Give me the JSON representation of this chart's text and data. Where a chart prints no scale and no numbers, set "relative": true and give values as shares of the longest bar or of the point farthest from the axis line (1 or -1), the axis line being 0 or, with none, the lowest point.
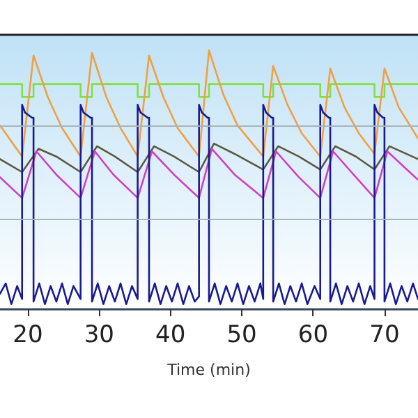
{
  "chart_data": {
    "type": "line",
    "xlabel": "Time (min)",
    "relative": true,
    "xlim": [
      16.1,
      74.7
    ],
    "xticks": [
      20,
      30,
      40,
      50,
      60,
      70
    ],
    "ref_lines": [
      {
        "axis": "y",
        "value": 0.35,
        "color": "#a8b4bc"
      },
      {
        "axis": "y",
        "value": 0.71,
        "color": "#a8b4bc"
      }
    ],
    "marker": "none",
    "line_style": "solid",
    "tick_labels": "x",
    "series": [
      {
        "color": "#80e040",
        "x": [
          16.1,
          19.2,
          19.2,
          20.8,
          20.8,
          27.4,
          27.4,
          29.0,
          29.0,
          35.4,
          35.4,
          37.0,
          37.0,
          44.0,
          44.0,
          45.4,
          45.4,
          53.0,
          53.0,
          54.4,
          54.4,
          61.0,
          61.0,
          62.4,
          62.4,
          68.6,
          68.6,
          70.0,
          70.0,
          74.7
        ],
        "values": [
          0.87,
          0.87,
          0.82,
          0.82,
          0.87,
          0.87,
          0.82,
          0.82,
          0.87,
          0.87,
          0.82,
          0.82,
          0.87,
          0.87,
          0.82,
          0.82,
          0.87,
          0.87,
          0.82,
          0.82,
          0.87,
          0.87,
          0.82,
          0.82,
          0.87,
          0.87,
          0.82,
          0.82,
          0.87,
          0.87
        ]
      },
      {
        "color": "#f0a040",
        "x": [
          16.1,
          19.2,
          20.8,
          22.8,
          24.8,
          27.4,
          29.0,
          31,
          33,
          35.4,
          37.0,
          39,
          41,
          44.0,
          45.4,
          47.4,
          49.4,
          53.0,
          54.4,
          56.4,
          58.4,
          61.0,
          62.4,
          64.4,
          66.4,
          68.6,
          70.0,
          72,
          74.7
        ],
        "values": [
          0.71,
          0.59,
          0.98,
          0.82,
          0.7,
          0.59,
          0.99,
          0.82,
          0.7,
          0.59,
          0.98,
          0.82,
          0.7,
          0.59,
          1.0,
          0.83,
          0.71,
          0.59,
          0.94,
          0.79,
          0.68,
          0.59,
          0.93,
          0.78,
          0.68,
          0.6,
          0.93,
          0.78,
          0.66
        ]
      },
      {
        "color": "#5a5a40",
        "x": [
          16.1,
          19.2,
          21.5,
          24,
          27.4,
          29.7,
          32.2,
          35.4,
          37.7,
          40.5,
          44.0,
          46.1,
          49,
          53.0,
          55.1,
          58,
          61.0,
          63.1,
          66,
          68.6,
          70.7,
          74.7
        ],
        "values": [
          0.58,
          0.53,
          0.62,
          0.59,
          0.53,
          0.63,
          0.59,
          0.53,
          0.63,
          0.59,
          0.53,
          0.64,
          0.6,
          0.54,
          0.63,
          0.59,
          0.54,
          0.63,
          0.59,
          0.54,
          0.63,
          0.58
        ]
      },
      {
        "color": "#d040c0",
        "x": [
          16.1,
          19.2,
          21.2,
          24,
          27.4,
          29.4,
          32,
          35.4,
          37.4,
          40.5,
          44.0,
          45.8,
          49,
          53.0,
          54.8,
          58,
          61.0,
          62.8,
          66,
          68.6,
          70.4,
          74.7
        ],
        "values": [
          0.51,
          0.43,
          0.61,
          0.52,
          0.43,
          0.61,
          0.52,
          0.43,
          0.61,
          0.52,
          0.43,
          0.62,
          0.52,
          0.43,
          0.61,
          0.51,
          0.43,
          0.61,
          0.51,
          0.43,
          0.61,
          0.5
        ]
      },
      {
        "color": "#1a1a90",
        "x": [
          16.1,
          16.9,
          17.7,
          18.5,
          19.2,
          19.2,
          19.6,
          20.6,
          20.8,
          20.8,
          21.6,
          22.4,
          23.2,
          24.0,
          24.8,
          25.6,
          26.4,
          27.4,
          27.4,
          27.8,
          28.8,
          29.0,
          29.0,
          29.8,
          30.6,
          31.4,
          32.2,
          33.0,
          33.8,
          34.6,
          35.4,
          35.4,
          35.8,
          36.8,
          37.0,
          37.0,
          37.8,
          38.6,
          39.4,
          40.2,
          41.0,
          41.8,
          42.6,
          43.4,
          44.0,
          44.0,
          44.4,
          45.2,
          45.4,
          45.4,
          46.2,
          47.0,
          47.8,
          48.6,
          49.4,
          50.2,
          51.0,
          51.8,
          52.6,
          53.0,
          53.0,
          53.4,
          54.2,
          54.4,
          54.4,
          55.2,
          56.0,
          56.8,
          57.6,
          58.4,
          59.2,
          60.2,
          61.0,
          61.0,
          61.4,
          62.2,
          62.4,
          62.4,
          63.2,
          64.0,
          64.8,
          65.6,
          66.4,
          67.2,
          68.0,
          68.6,
          68.6,
          69.0,
          69.8,
          70.0,
          70.0,
          70.8,
          71.6,
          72.4,
          73.2,
          74.0,
          74.7
        ],
        "values": [
          0.06,
          0.1,
          0.02,
          0.09,
          0.04,
          0.79,
          0.76,
          0.74,
          0.74,
          0.03,
          0.1,
          0.02,
          0.09,
          0.03,
          0.1,
          0.02,
          0.09,
          0.04,
          0.79,
          0.76,
          0.74,
          0.74,
          0.03,
          0.1,
          0.02,
          0.09,
          0.03,
          0.1,
          0.02,
          0.09,
          0.04,
          0.79,
          0.76,
          0.74,
          0.74,
          0.03,
          0.1,
          0.02,
          0.09,
          0.03,
          0.1,
          0.02,
          0.09,
          0.03,
          0.05,
          0.79,
          0.76,
          0.74,
          0.74,
          0.03,
          0.1,
          0.02,
          0.09,
          0.03,
          0.1,
          0.02,
          0.09,
          0.03,
          0.1,
          0.04,
          0.79,
          0.76,
          0.74,
          0.74,
          0.03,
          0.1,
          0.02,
          0.09,
          0.03,
          0.1,
          0.02,
          0.09,
          0.04,
          0.79,
          0.76,
          0.74,
          0.74,
          0.03,
          0.1,
          0.02,
          0.09,
          0.03,
          0.1,
          0.02,
          0.09,
          0.04,
          0.79,
          0.76,
          0.74,
          0.74,
          0.03,
          0.1,
          0.02,
          0.09,
          0.03,
          0.1,
          0.04
        ]
      }
    ]
  }
}
